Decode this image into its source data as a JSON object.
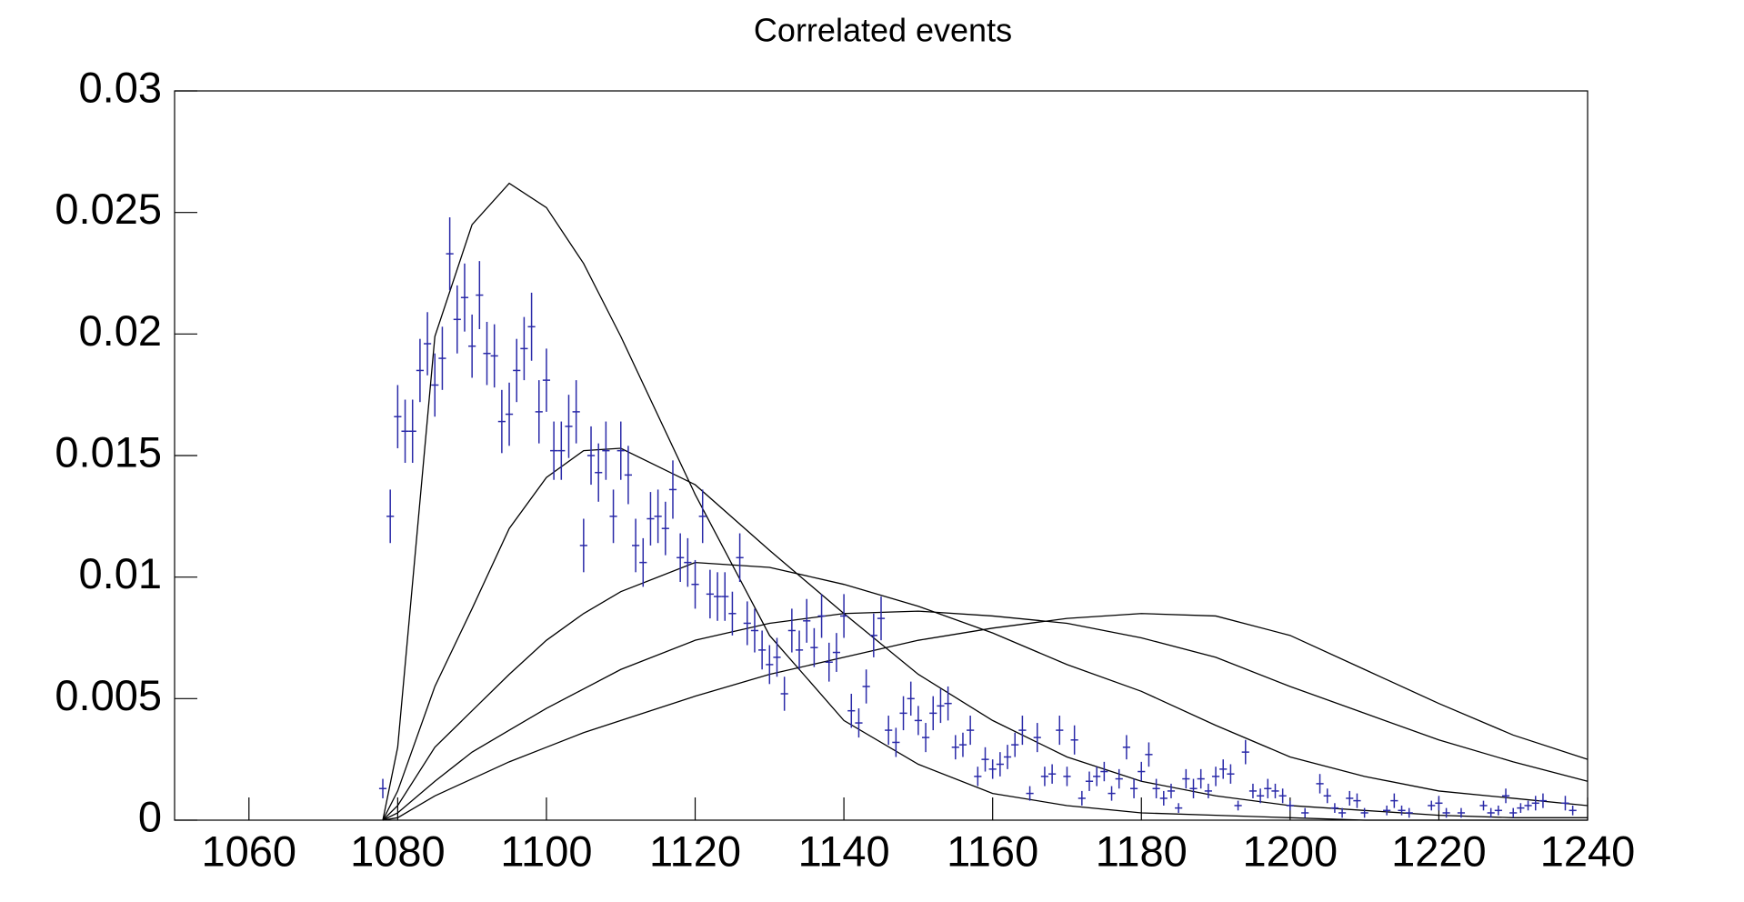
{
  "chart_data": {
    "type": "scatter",
    "title": "Correlated events",
    "xlim": [
      1050,
      1240
    ],
    "ylim": [
      0,
      0.03
    ],
    "xticks": [
      1060,
      1080,
      1100,
      1120,
      1140,
      1160,
      1180,
      1200,
      1220,
      1240
    ],
    "yticks": [
      0,
      0.005,
      0.01,
      0.015,
      0.02,
      0.025,
      0.03
    ],
    "color": "#2a2aa8",
    "curve_color": "#000000",
    "x": [
      1078,
      1079,
      1080,
      1081,
      1082,
      1083,
      1084,
      1085,
      1086,
      1087,
      1088,
      1089,
      1090,
      1091,
      1092,
      1093,
      1094,
      1095,
      1096,
      1097,
      1098,
      1099,
      1100,
      1101,
      1102,
      1103,
      1104,
      1105,
      1106,
      1107,
      1108,
      1109,
      1110,
      1111,
      1112,
      1113,
      1114,
      1115,
      1116,
      1117,
      1118,
      1119,
      1120,
      1121,
      1122,
      1123,
      1124,
      1125,
      1126,
      1127,
      1128,
      1129,
      1130,
      1131,
      1132,
      1133,
      1134,
      1135,
      1136,
      1137,
      1138,
      1139,
      1140,
      1141,
      1142,
      1143,
      1144,
      1145,
      1146,
      1147,
      1148,
      1149,
      1150,
      1151,
      1152,
      1153,
      1154,
      1155,
      1156,
      1157,
      1158,
      1159,
      1160,
      1161,
      1162,
      1163,
      1164,
      1165,
      1166,
      1167,
      1168,
      1169,
      1170,
      1171,
      1172,
      1173,
      1174,
      1175,
      1176,
      1177,
      1178,
      1179,
      1180,
      1181,
      1182,
      1183,
      1184,
      1185,
      1186,
      1187,
      1188,
      1189,
      1190,
      1191,
      1192,
      1193,
      1194,
      1195,
      1196,
      1197,
      1198,
      1199,
      1200,
      1202,
      1204,
      1205,
      1206,
      1207,
      1208,
      1209,
      1210,
      1213,
      1214,
      1215,
      1216,
      1219,
      1220,
      1221,
      1223,
      1226,
      1227,
      1228,
      1229,
      1230,
      1231,
      1232,
      1233,
      1234,
      1237,
      1238
    ],
    "values": [
      0.0013,
      0.0125,
      0.0166,
      0.016,
      0.016,
      0.0185,
      0.0196,
      0.0179,
      0.019,
      0.0233,
      0.0206,
      0.0215,
      0.0195,
      0.0216,
      0.0192,
      0.0191,
      0.0164,
      0.0167,
      0.0185,
      0.0194,
      0.0203,
      0.0168,
      0.0181,
      0.0152,
      0.0152,
      0.0162,
      0.0168,
      0.0113,
      0.015,
      0.0143,
      0.0152,
      0.0125,
      0.0152,
      0.0142,
      0.0113,
      0.0106,
      0.0124,
      0.0125,
      0.012,
      0.0136,
      0.0108,
      0.0106,
      0.0097,
      0.0125,
      0.0093,
      0.0092,
      0.0092,
      0.0085,
      0.0108,
      0.0081,
      0.0078,
      0.007,
      0.0064,
      0.0067,
      0.0052,
      0.0078,
      0.007,
      0.0082,
      0.0071,
      0.0084,
      0.0065,
      0.0069,
      0.0084,
      0.0045,
      0.004,
      0.0055,
      0.0076,
      0.0083,
      0.0037,
      0.0032,
      0.0044,
      0.005,
      0.0041,
      0.0034,
      0.0044,
      0.0047,
      0.0048,
      0.003,
      0.0031,
      0.0037,
      0.0018,
      0.0025,
      0.0021,
      0.0023,
      0.0026,
      0.0031,
      0.0037,
      0.0011,
      0.0034,
      0.0018,
      0.0019,
      0.0037,
      0.0018,
      0.0033,
      0.0009,
      0.0016,
      0.0018,
      0.002,
      0.0011,
      0.0017,
      0.003,
      0.0013,
      0.002,
      0.0027,
      0.0013,
      0.0009,
      0.0012,
      0.0005,
      0.0017,
      0.0013,
      0.0017,
      0.0012,
      0.0018,
      0.0021,
      0.0019,
      0.0006,
      0.0028,
      0.0012,
      0.001,
      0.0013,
      0.0012,
      0.001,
      0.0006,
      0.0003,
      0.0015,
      0.001,
      0.0005,
      0.0003,
      0.0009,
      0.0008,
      0.0003,
      0.0004,
      0.0008,
      0.0004,
      0.0003,
      0.0006,
      0.0007,
      0.0003,
      0.0003,
      0.0006,
      0.0003,
      0.0004,
      0.001,
      0.0003,
      0.0005,
      0.0006,
      0.0007,
      0.0008,
      0.0007,
      0.0004
    ],
    "errors": [
      0.0004,
      0.0011,
      0.0013,
      0.0013,
      0.0013,
      0.0013,
      0.0013,
      0.0013,
      0.0013,
      0.0015,
      0.0014,
      0.0014,
      0.0013,
      0.0014,
      0.0013,
      0.0013,
      0.0013,
      0.0013,
      0.0013,
      0.0013,
      0.0014,
      0.0013,
      0.0013,
      0.0012,
      0.0012,
      0.0013,
      0.0013,
      0.0011,
      0.0012,
      0.0012,
      0.0012,
      0.0011,
      0.0012,
      0.0012,
      0.0011,
      0.001,
      0.0011,
      0.0011,
      0.0011,
      0.0012,
      0.001,
      0.001,
      0.001,
      0.0011,
      0.001,
      0.001,
      0.001,
      0.0009,
      0.001,
      0.0009,
      0.0009,
      0.0008,
      0.0008,
      0.0008,
      0.0007,
      0.0009,
      0.0008,
      0.0009,
      0.0008,
      0.0009,
      0.0008,
      0.0008,
      0.0009,
      0.0007,
      0.0006,
      0.0007,
      0.0009,
      0.0009,
      0.0006,
      0.0006,
      0.0007,
      0.0007,
      0.0006,
      0.0006,
      0.0007,
      0.0007,
      0.0007,
      0.0005,
      0.0005,
      0.0006,
      0.0004,
      0.0005,
      0.0004,
      0.0005,
      0.0005,
      0.0005,
      0.0006,
      0.0003,
      0.0006,
      0.0004,
      0.0004,
      0.0006,
      0.0004,
      0.0006,
      0.0003,
      0.0004,
      0.0004,
      0.0004,
      0.0003,
      0.0004,
      0.0005,
      0.0004,
      0.0004,
      0.0005,
      0.0004,
      0.0003,
      0.0003,
      0.0002,
      0.0004,
      0.0004,
      0.0004,
      0.0003,
      0.0004,
      0.0004,
      0.0004,
      0.0002,
      0.0005,
      0.0003,
      0.0003,
      0.0004,
      0.0003,
      0.0003,
      0.0002,
      0.0002,
      0.0004,
      0.0003,
      0.0002,
      0.0002,
      0.0003,
      0.0003,
      0.0002,
      0.0002,
      0.0003,
      0.0002,
      0.0002,
      0.0002,
      0.0003,
      0.0002,
      0.0002,
      0.0002,
      0.0002,
      0.0002,
      0.0003,
      0.0002,
      0.0002,
      0.0002,
      0.0003,
      0.0003,
      0.0003,
      0.0002
    ],
    "curve_x": [
      1078,
      1080,
      1085,
      1090,
      1095,
      1100,
      1105,
      1110,
      1120,
      1130,
      1140,
      1150,
      1160,
      1170,
      1180,
      1190,
      1200,
      1210,
      1220,
      1230,
      1240
    ],
    "curves": [
      {
        "values": [
          0,
          0.003,
          0.0199,
          0.0245,
          0.0262,
          0.0252,
          0.0229,
          0.0199,
          0.0134,
          0.0076,
          0.0041,
          0.0023,
          0.0011,
          0.0006,
          0.0003,
          0.0002,
          0.0001,
          0,
          0,
          0,
          0
        ]
      },
      {
        "values": [
          0,
          0.0012,
          0.0055,
          0.0087,
          0.012,
          0.0141,
          0.0152,
          0.0153,
          0.0138,
          0.0111,
          0.0085,
          0.006,
          0.0041,
          0.0026,
          0.0016,
          0.001,
          0.0006,
          0.0004,
          0.0002,
          0.0001,
          0.0001
        ]
      },
      {
        "values": [
          0,
          0.0006,
          0.003,
          0.0045,
          0.006,
          0.0074,
          0.0085,
          0.0094,
          0.0106,
          0.0104,
          0.0097,
          0.0088,
          0.0077,
          0.0064,
          0.0053,
          0.0039,
          0.0026,
          0.0018,
          0.0012,
          0.0009,
          0.0006
        ]
      },
      {
        "values": [
          0,
          0.0003,
          0.0016,
          0.0028,
          0.0037,
          0.0046,
          0.0054,
          0.0062,
          0.0074,
          0.0081,
          0.0085,
          0.0086,
          0.0084,
          0.0081,
          0.0075,
          0.0067,
          0.0055,
          0.0044,
          0.0033,
          0.0024,
          0.0016
        ]
      },
      {
        "values": [
          0,
          0.0001,
          0.001,
          0.0017,
          0.0024,
          0.003,
          0.0036,
          0.0041,
          0.0051,
          0.006,
          0.0067,
          0.0074,
          0.0079,
          0.0083,
          0.0085,
          0.0084,
          0.0076,
          0.0062,
          0.0048,
          0.0035,
          0.0025
        ]
      }
    ]
  }
}
